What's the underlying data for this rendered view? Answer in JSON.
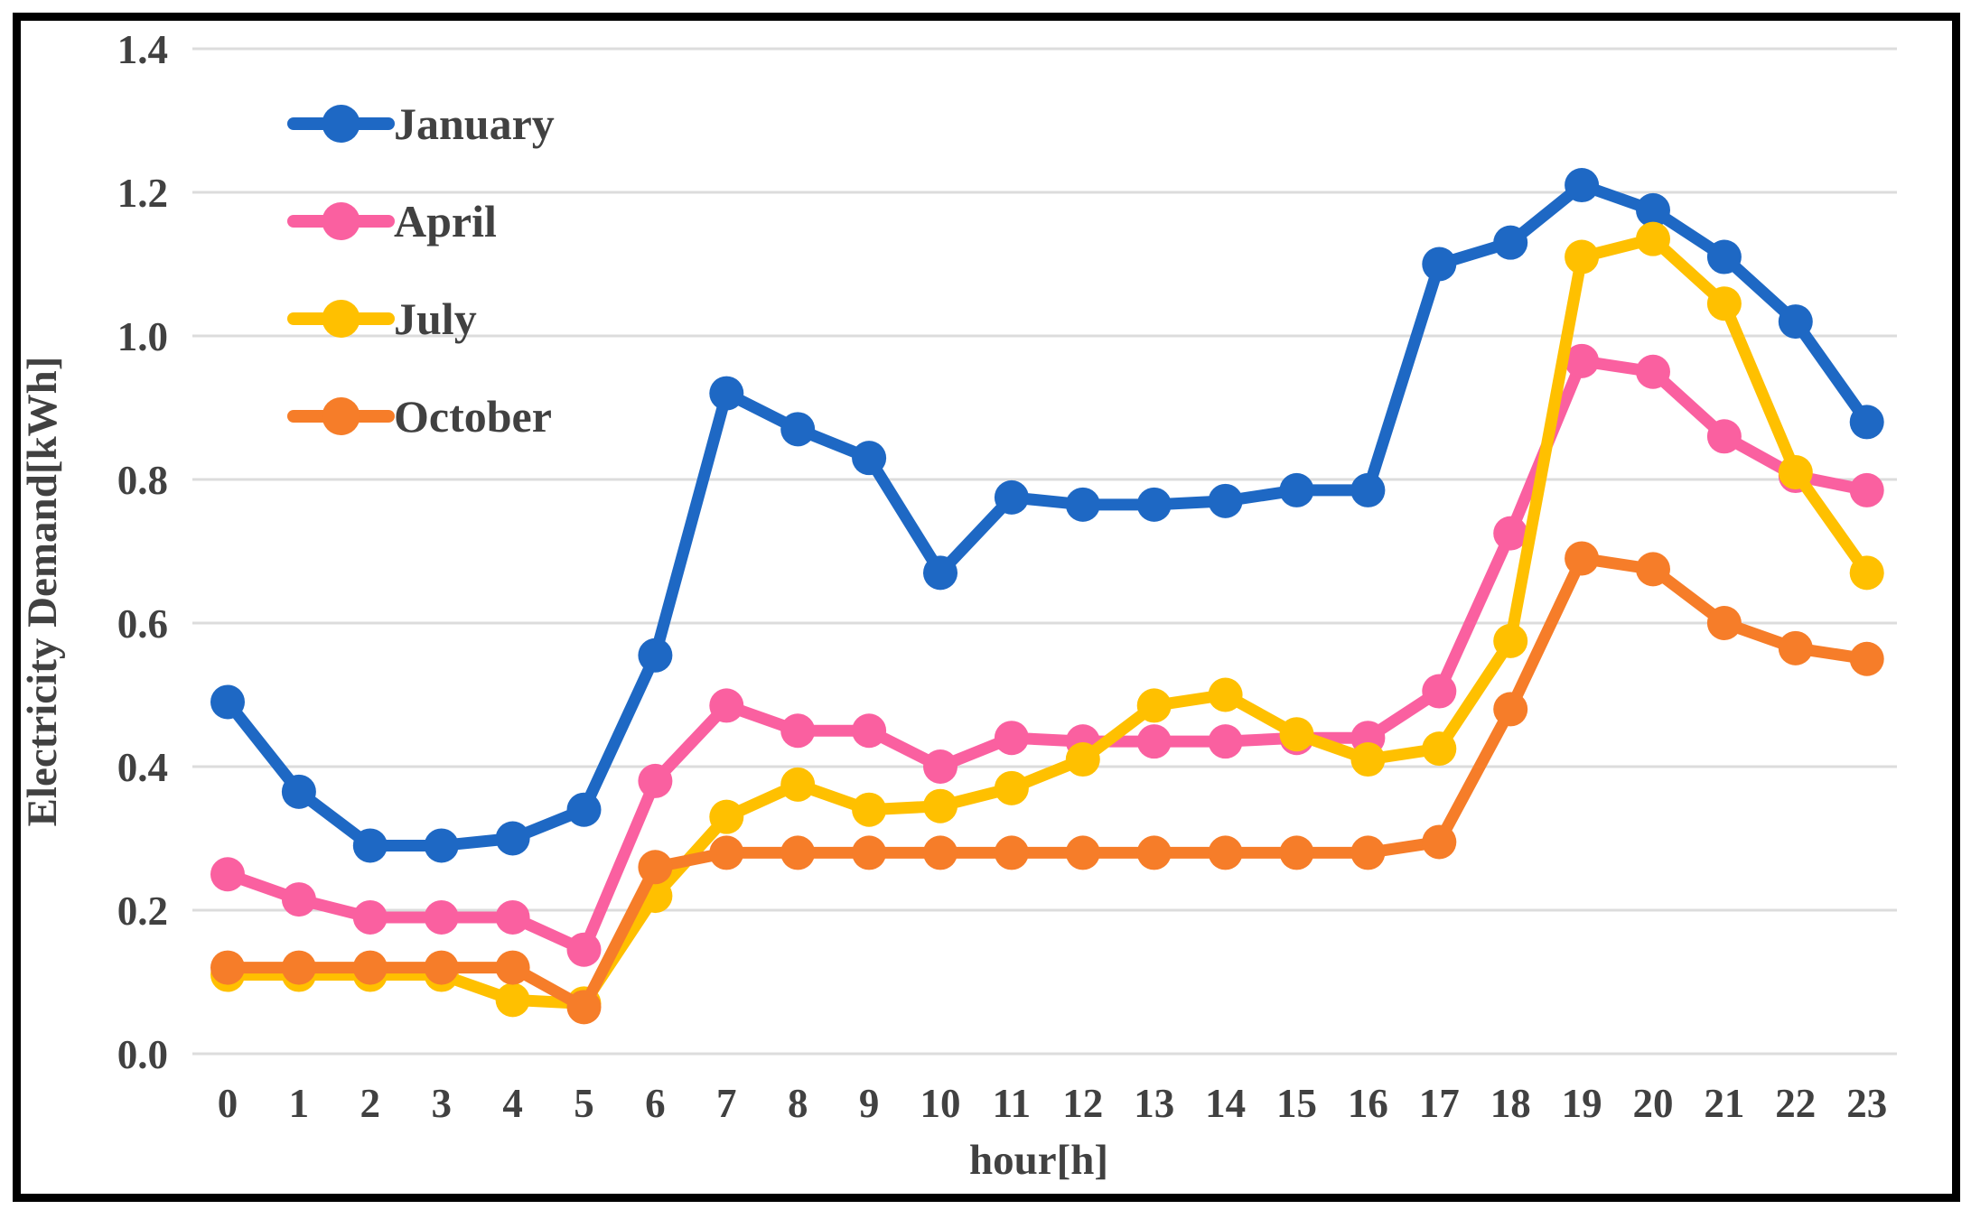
{
  "figure": {
    "border_color": "#000000",
    "background": "#ffffff",
    "grid_color": "#DCDCDC",
    "text_color": "#414141"
  },
  "chart_data": {
    "type": "line",
    "title": "",
    "xlabel": "hour[h]",
    "ylabel": "Electricity Demand[kWh]",
    "x": [
      0,
      1,
      2,
      3,
      4,
      5,
      6,
      7,
      8,
      9,
      10,
      11,
      12,
      13,
      14,
      15,
      16,
      17,
      18,
      19,
      20,
      21,
      22,
      23
    ],
    "x_tick_labels": [
      "0",
      "1",
      "2",
      "3",
      "4",
      "5",
      "6",
      "7",
      "8",
      "9",
      "10",
      "11",
      "12",
      "13",
      "14",
      "15",
      "16",
      "17",
      "18",
      "19",
      "20",
      "21",
      "22",
      "23"
    ],
    "y_tick_labels": [
      "0.0",
      "0.2",
      "0.4",
      "0.6",
      "0.8",
      "1.0",
      "1.2",
      "1.4"
    ],
    "ylim": [
      0.0,
      1.4
    ],
    "grid": true,
    "legend_position": "upper-left-inside",
    "series": [
      {
        "name": "January",
        "color": "#1E68C4",
        "values": [
          0.49,
          0.365,
          0.29,
          0.29,
          0.3,
          0.34,
          0.555,
          0.92,
          0.87,
          0.83,
          0.67,
          0.775,
          0.765,
          0.765,
          0.77,
          0.785,
          0.785,
          1.1,
          1.13,
          1.21,
          1.175,
          1.11,
          1.02,
          0.88
        ]
      },
      {
        "name": "April",
        "color": "#FA60A0",
        "values": [
          0.25,
          0.215,
          0.19,
          0.19,
          0.19,
          0.145,
          0.38,
          0.485,
          0.45,
          0.45,
          0.4,
          0.44,
          0.435,
          0.435,
          0.435,
          0.44,
          0.44,
          0.505,
          0.725,
          0.965,
          0.95,
          0.86,
          0.805,
          0.785
        ]
      },
      {
        "name": "July",
        "color": "#FFC000",
        "values": [
          0.11,
          0.11,
          0.11,
          0.11,
          0.075,
          0.07,
          0.22,
          0.33,
          0.375,
          0.34,
          0.345,
          0.37,
          0.41,
          0.485,
          0.5,
          0.445,
          0.41,
          0.425,
          0.575,
          1.11,
          1.135,
          1.045,
          0.81,
          0.67
        ]
      },
      {
        "name": "October",
        "color": "#F67D29",
        "values": [
          0.12,
          0.12,
          0.12,
          0.12,
          0.12,
          0.065,
          0.26,
          0.28,
          0.28,
          0.28,
          0.28,
          0.28,
          0.28,
          0.28,
          0.28,
          0.28,
          0.28,
          0.295,
          0.48,
          0.69,
          0.675,
          0.6,
          0.565,
          0.55
        ]
      }
    ]
  }
}
